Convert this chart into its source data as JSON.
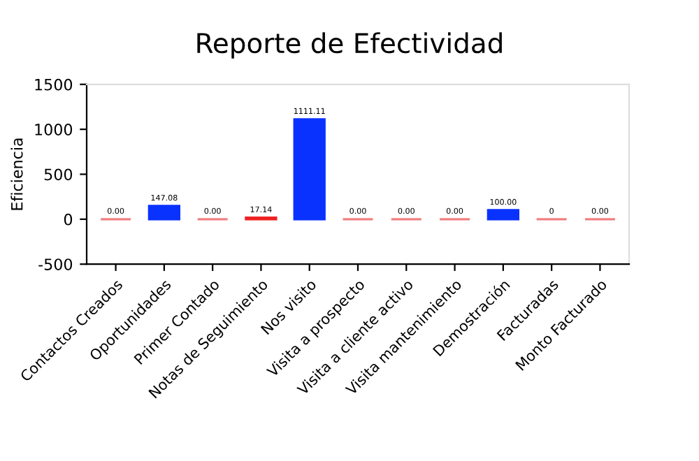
{
  "chart_data": {
    "type": "bar",
    "title": "Reporte de Efectividad",
    "ylabel": "Eficiencia",
    "categories": [
      "Contactos Creados",
      "Oportunidades",
      "Primer Contado",
      "Notas de Seguimiento",
      "Nos visito",
      "Visita a prospecto",
      "Visita a cliente activo",
      "Visita mantenimiento",
      "Demostración",
      "Facturadas",
      "Monto Facturado"
    ],
    "values": [
      0,
      147.08,
      0,
      17.14,
      1111.11,
      0,
      0,
      0,
      100,
      0,
      0
    ],
    "value_labels": [
      "0.00",
      "147.08",
      "0.00",
      "17.14",
      "1111.11",
      "0.00",
      "0.00",
      "0.00",
      "100.00",
      "0",
      "0.00"
    ],
    "colors": [
      "#f08080",
      "#0a32ff",
      "#f08080",
      "#ee2222",
      "#0a32ff",
      "#f08080",
      "#f08080",
      "#f08080",
      "#0a32ff",
      "#f08080",
      "#f08080"
    ],
    "ylim": [
      -500,
      1500
    ],
    "yticks": [
      -500,
      0,
      500,
      1000,
      1500
    ],
    "grid": false,
    "legend": false
  }
}
